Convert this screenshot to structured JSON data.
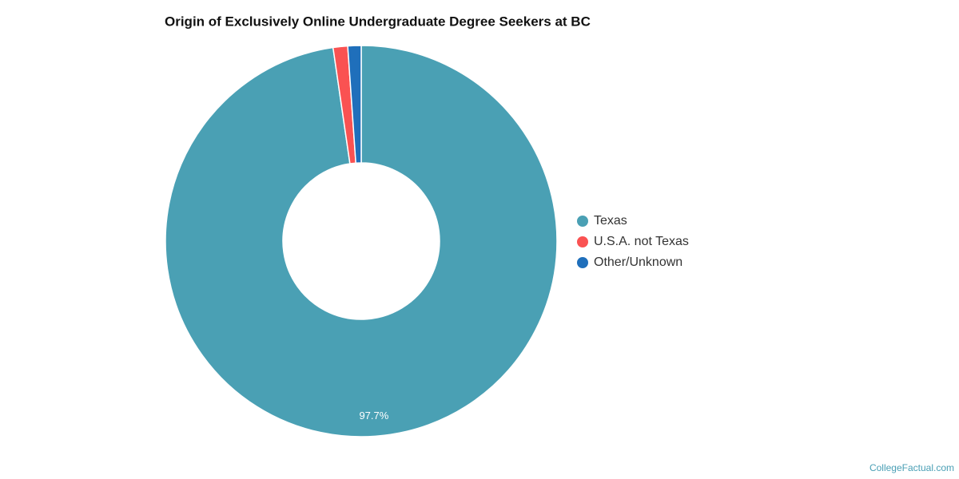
{
  "chart_data": {
    "type": "donut",
    "title": "Origin of Exclusively Online Undergraduate Degree Seekers at BC",
    "categories": [
      "Texas",
      "U.S.A. not Texas",
      "Other/Unknown"
    ],
    "values": [
      97.7,
      1.2,
      1.1
    ],
    "value_labels": [
      "97.7%",
      null,
      null
    ],
    "colors": [
      "#4aa0b4",
      "#fa5252",
      "#1f6fbb"
    ],
    "legend": "right",
    "credit": "CollegeFactual.com"
  }
}
